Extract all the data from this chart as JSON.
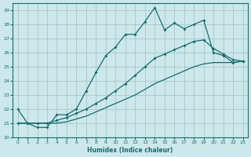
{
  "xlabel": "Humidex (Indice chaleur)",
  "bg_color": "#cce8ec",
  "grid_color": "#aacccc",
  "line_color": "#1a6b6b",
  "xlim": [
    -0.5,
    23.5
  ],
  "ylim": [
    20,
    29.5
  ],
  "xticks": [
    0,
    1,
    2,
    3,
    4,
    5,
    6,
    7,
    8,
    9,
    10,
    11,
    12,
    13,
    14,
    15,
    16,
    17,
    18,
    19,
    20,
    21,
    22,
    23
  ],
  "yticks": [
    20,
    21,
    22,
    23,
    24,
    25,
    26,
    27,
    28,
    29
  ],
  "line1_x": [
    0,
    1,
    2,
    3,
    4,
    5,
    6,
    7,
    8,
    9,
    10,
    11,
    12,
    13,
    14,
    15,
    16,
    17,
    18,
    19,
    20,
    21,
    22,
    23
  ],
  "line1_y": [
    22.0,
    21.0,
    20.7,
    20.7,
    21.6,
    21.6,
    22.0,
    23.3,
    24.6,
    25.8,
    26.4,
    27.3,
    27.3,
    28.2,
    29.2,
    27.6,
    28.1,
    27.7,
    28.0,
    28.3,
    26.0,
    25.8,
    25.3,
    25.4
  ],
  "line2_x": [
    0,
    1,
    2,
    3,
    4,
    5,
    6,
    7,
    8,
    9,
    10,
    11,
    12,
    13,
    14,
    15,
    16,
    17,
    18,
    19,
    20,
    21,
    22,
    23
  ],
  "line2_y": [
    21.0,
    21.0,
    21.0,
    21.0,
    21.2,
    21.4,
    21.7,
    22.0,
    22.4,
    22.8,
    23.3,
    23.8,
    24.4,
    25.0,
    25.6,
    25.9,
    26.2,
    26.5,
    26.8,
    26.9,
    26.3,
    25.9,
    25.5,
    25.4
  ],
  "line3_x": [
    0,
    1,
    2,
    3,
    4,
    5,
    6,
    7,
    8,
    9,
    10,
    11,
    12,
    13,
    14,
    15,
    16,
    17,
    18,
    19,
    20,
    21,
    22,
    23
  ],
  "line3_y": [
    21.0,
    21.0,
    21.0,
    21.0,
    21.0,
    21.1,
    21.3,
    21.5,
    21.8,
    22.1,
    22.4,
    22.7,
    23.0,
    23.4,
    23.8,
    24.1,
    24.4,
    24.7,
    25.0,
    25.2,
    25.3,
    25.3,
    25.3,
    25.4
  ]
}
